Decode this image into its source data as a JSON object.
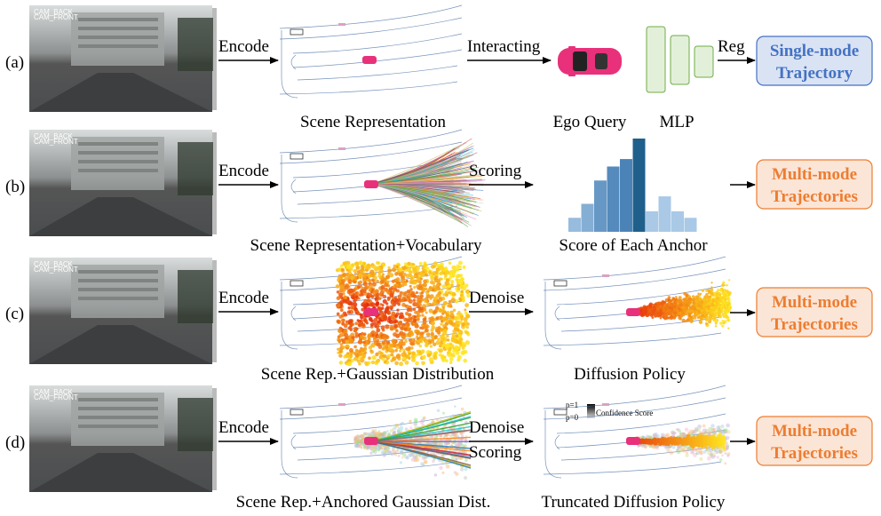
{
  "rows": [
    {
      "row_label": "(a)",
      "cam_labels": [
        "CAM_BACK",
        "CAM_FRONT"
      ],
      "encode_label": "Encode",
      "scene_caption": "Scene Representation",
      "step_label": "Interacting",
      "ego_query_caption": "Ego Query",
      "mlp_caption": "MLP",
      "reg_label": "Reg",
      "output_line1": "Single-mode",
      "output_line2": "Trajectory",
      "output_color": "#4472c4",
      "output_fill": "#dae3f3"
    },
    {
      "row_label": "(b)",
      "cam_labels": [
        "CAM_BACK",
        "CAM_FRONT"
      ],
      "encode_label": "Encode",
      "scene_caption": "Scene Representation+Vocabulary",
      "step_label": "Scoring",
      "score_caption": "Score of Each Anchor",
      "output_line1": "Multi-mode",
      "output_line2": "Trajectories",
      "output_color": "#ed7d31",
      "output_fill": "#fbe5d6"
    },
    {
      "row_label": "(c)",
      "cam_labels": [
        "CAM_BACK",
        "CAM_FRONT"
      ],
      "encode_label": "Encode",
      "scene_caption": "Scene Rep.+Gaussian Distribution",
      "step_label": "Denoise",
      "policy_caption": "Diffusion Policy",
      "output_line1": "Multi-mode",
      "output_line2": "Trajectories",
      "output_color": "#ed7d31",
      "output_fill": "#fbe5d6"
    },
    {
      "row_label": "(d)",
      "cam_labels": [
        "CAM_BACK",
        "CAM_FRONT"
      ],
      "encode_label": "Encode",
      "scene_caption": "Scene Rep.+Anchored Gaussian Dist.",
      "step_label": "Denoise",
      "step_label2": "Scoring",
      "policy_caption": "Truncated Diffusion Policy",
      "legend_p1": "p=1",
      "legend_p0": "p=0",
      "legend_title": "Confidence Score",
      "output_line1": "Multi-mode",
      "output_line2": "Trajectories",
      "output_color": "#ed7d31",
      "output_fill": "#fbe5d6"
    }
  ],
  "colors": {
    "ego_car": "#e8317a",
    "mlp_fill": "#e2f0d9",
    "mlp_stroke": "#70ad47",
    "histogram_dark": "#1f5f8b",
    "histogram_light": "#a9c9e6",
    "road_line": "#4a6fa5"
  },
  "histogram": {
    "relative_scores": [
      0.15,
      0.3,
      0.55,
      0.7,
      0.78,
      1.0,
      0.22,
      0.38,
      0.22,
      0.15
    ]
  }
}
